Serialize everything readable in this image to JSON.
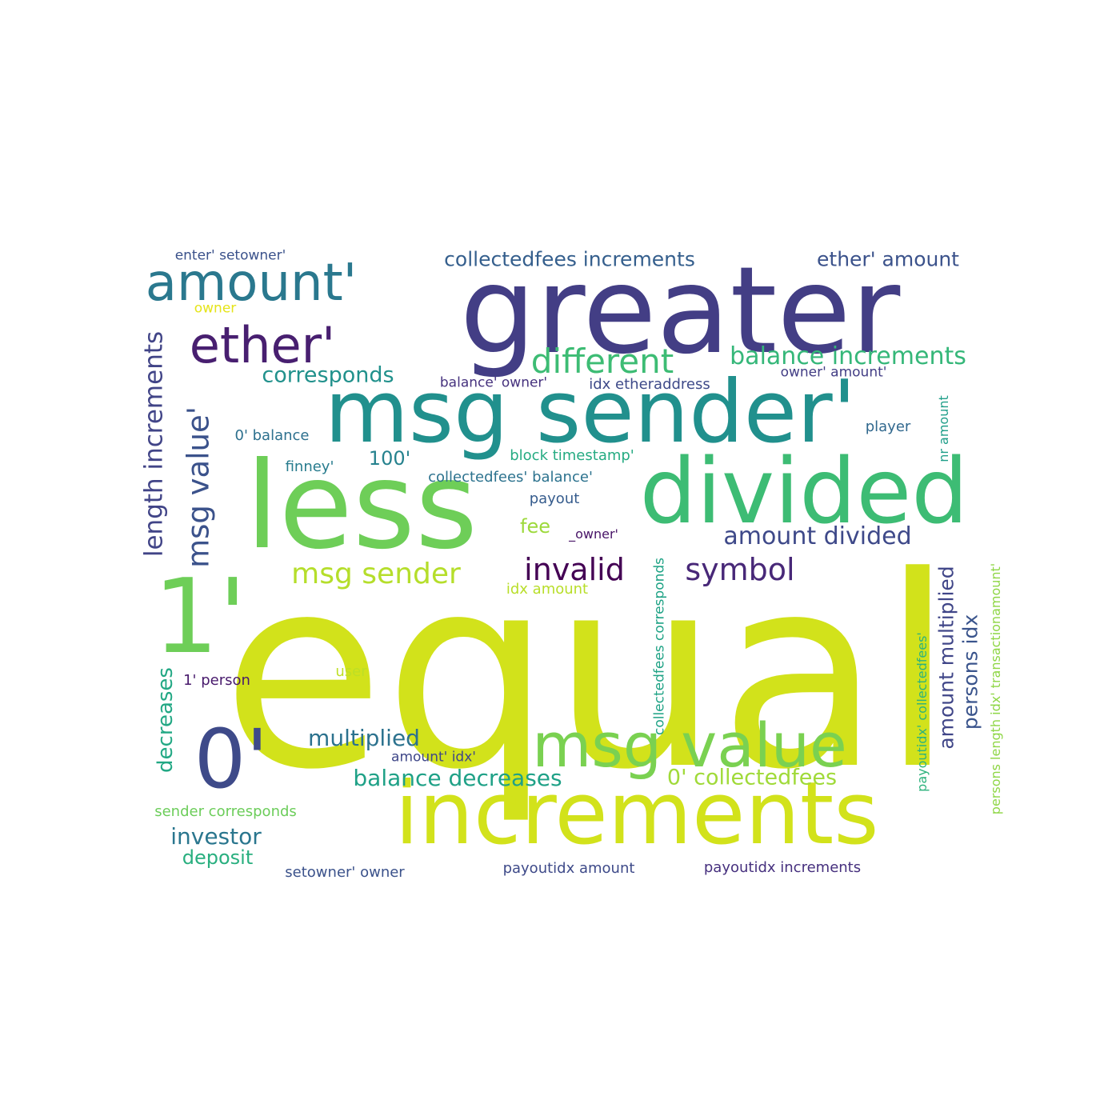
{
  "words": [
    {
      "text": "equal",
      "color": "#d2e21b"
    },
    {
      "text": "greater",
      "color": "#433e85"
    },
    {
      "text": "msg sender'",
      "color": "#21908d"
    },
    {
      "text": "less",
      "color": "#6ece58"
    },
    {
      "text": "divided",
      "color": "#3dbc74"
    },
    {
      "text": "increments",
      "color": "#d2e21b"
    },
    {
      "text": "1'",
      "color": "#6ece58"
    },
    {
      "text": "0'",
      "color": "#3e4a89"
    },
    {
      "text": "msg value",
      "color": "#7ad151"
    },
    {
      "text": "amount'",
      "color": "#2a788e"
    },
    {
      "text": "ether'",
      "color": "#481f70"
    },
    {
      "text": "different",
      "color": "#3dbc74"
    },
    {
      "text": "msg value'",
      "color": "#3b528b"
    },
    {
      "text": "length increments",
      "color": "#414487"
    },
    {
      "text": "msg sender",
      "color": "#b5de2b"
    },
    {
      "text": "invalid",
      "color": "#440154"
    },
    {
      "text": "symbol",
      "color": "#482878"
    },
    {
      "text": "balance increments",
      "color": "#35b779"
    },
    {
      "text": "collectedfees increments",
      "color": "#355f8d"
    },
    {
      "text": "ether' amount",
      "color": "#3b528b"
    },
    {
      "text": "corresponds",
      "color": "#21918c"
    },
    {
      "text": "amount divided",
      "color": "#3e4989"
    },
    {
      "text": "amount multiplied",
      "color": "#404688"
    },
    {
      "text": "persons idx",
      "color": "#3a548c"
    },
    {
      "text": "multiplied",
      "color": "#2c728e"
    },
    {
      "text": "decreases",
      "color": "#22a884"
    },
    {
      "text": "balance decreases",
      "color": "#1fa187"
    },
    {
      "text": "0' collectedfees",
      "color": "#a0da39"
    },
    {
      "text": "investor",
      "color": "#2a768e"
    },
    {
      "text": "deposit",
      "color": "#29af7f"
    },
    {
      "text": "100'",
      "color": "#26828e"
    },
    {
      "text": "fee",
      "color": "#9dd93b"
    },
    {
      "text": "enter' setowner'",
      "color": "#3b528b"
    },
    {
      "text": "owner",
      "color": "#e5e419"
    },
    {
      "text": "balance' owner'",
      "color": "#46327e"
    },
    {
      "text": "idx etheraddress",
      "color": "#3e4a89"
    },
    {
      "text": "owner' amount'",
      "color": "#433e85"
    },
    {
      "text": "player",
      "color": "#31688e"
    },
    {
      "text": "nr amount",
      "color": "#1f9e89"
    },
    {
      "text": "0' balance",
      "color": "#2d708e"
    },
    {
      "text": "finney'",
      "color": "#287c8e"
    },
    {
      "text": "block timestamp'",
      "color": "#25ab82"
    },
    {
      "text": "collectedfees' balance'",
      "color": "#2c728e"
    },
    {
      "text": "payout",
      "color": "#365c8d"
    },
    {
      "text": "_owner'",
      "color": "#481467"
    },
    {
      "text": "collectedfees corresponds",
      "color": "#20a386"
    },
    {
      "text": "idx amount",
      "color": "#b8de29"
    },
    {
      "text": "payoutidx' collectedfees'",
      "color": "#2db27d"
    },
    {
      "text": "persons length idx' transactionamount'",
      "color": "#8ed645"
    },
    {
      "text": "user",
      "color": "#bddf26"
    },
    {
      "text": "1' person",
      "color": "#481a6c"
    },
    {
      "text": "amount' idx'",
      "color": "#3f4788"
    },
    {
      "text": "sender corresponds",
      "color": "#6ccd5a"
    },
    {
      "text": "setowner' owner",
      "color": "#3b528b"
    },
    {
      "text": "payoutidx amount",
      "color": "#3e4a89"
    },
    {
      "text": "payoutidx increments",
      "color": "#46307e"
    }
  ]
}
